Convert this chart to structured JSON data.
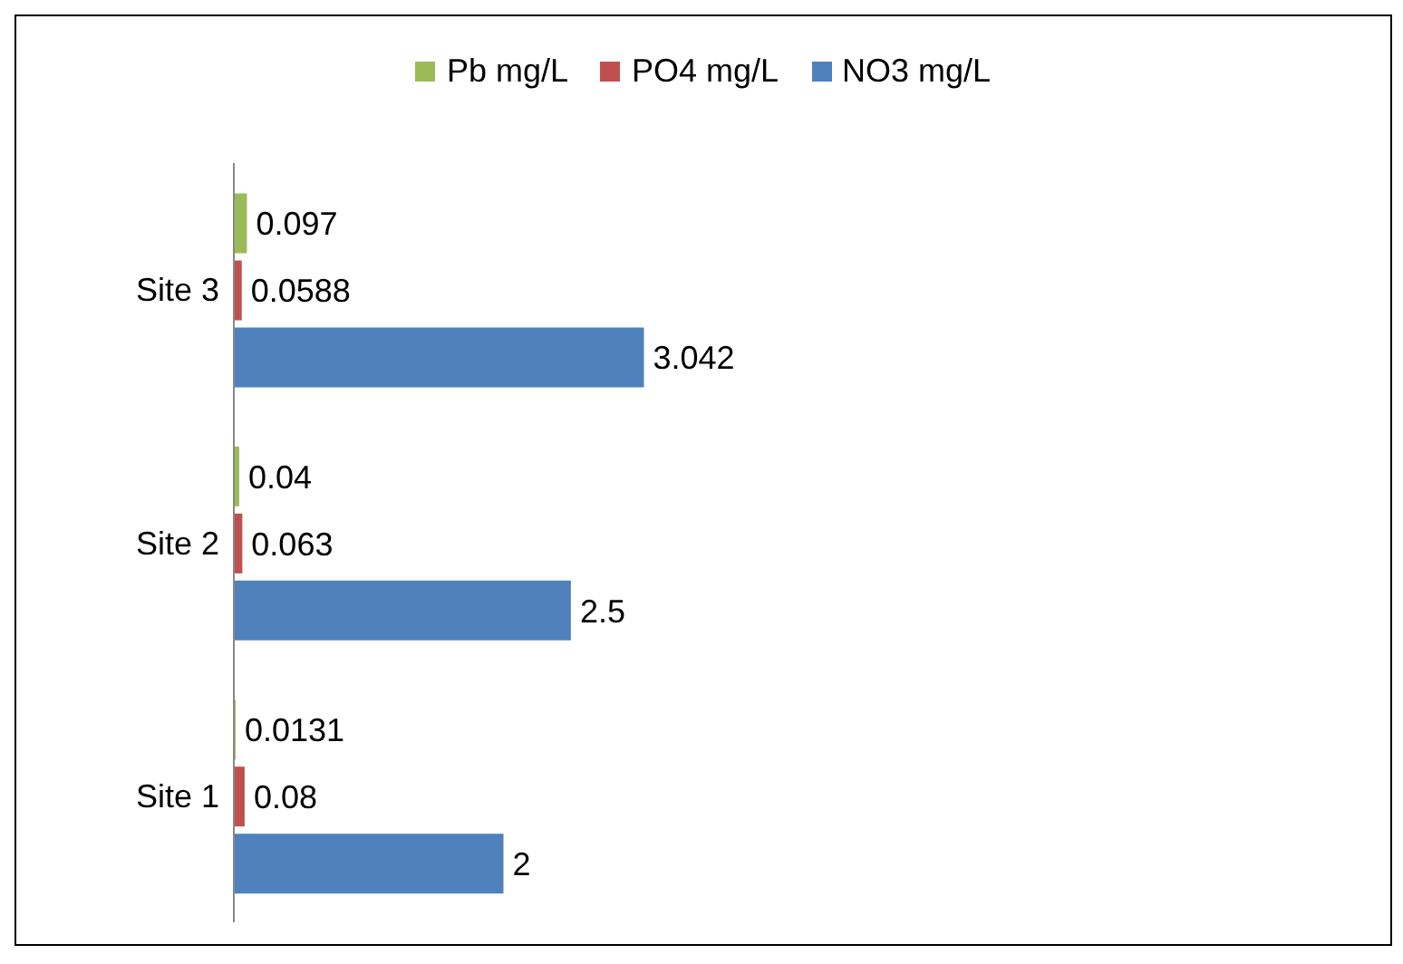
{
  "chart_data": {
    "type": "bar",
    "orientation": "horizontal",
    "categories": [
      "Site 3",
      "Site 2",
      "Site 1"
    ],
    "series": [
      {
        "name": "Pb mg/L",
        "color": "#9bbb59",
        "values": [
          0.097,
          0.04,
          0.0131
        ]
      },
      {
        "name": "PO4 mg/L",
        "color": "#c0504d",
        "values": [
          0.0588,
          0.063,
          0.08
        ]
      },
      {
        "name": "NO3 mg/L",
        "color": "#4f81bd",
        "values": [
          3.042,
          2.5,
          2
        ]
      }
    ],
    "data_labels": true,
    "legend": "top",
    "grid": false
  }
}
